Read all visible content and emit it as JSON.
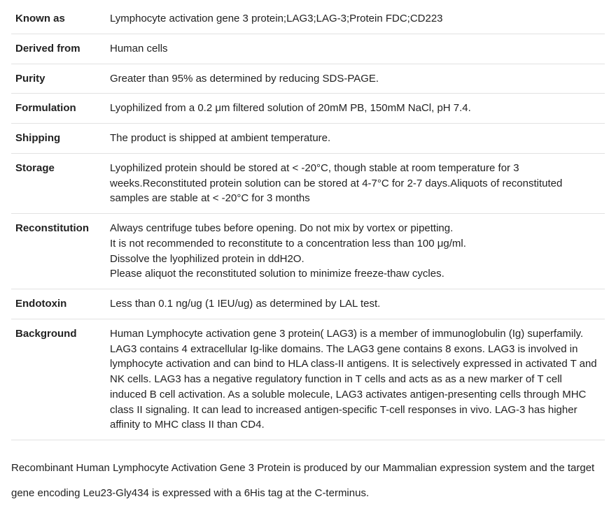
{
  "table": {
    "rows": [
      {
        "label": "Known as",
        "value": "Lymphocyte activation gene 3 protein;LAG3;LAG-3;Protein FDC;CD223"
      },
      {
        "label": "Derived from",
        "value": "Human cells"
      },
      {
        "label": "Purity",
        "value": "Greater than 95% as determined by reducing SDS-PAGE."
      },
      {
        "label": "Formulation",
        "value": "Lyophilized from a 0.2 μm filtered solution of 20mM PB, 150mM NaCl, pH 7.4."
      },
      {
        "label": "Shipping",
        "value": "The product is shipped at ambient temperature."
      },
      {
        "label": "Storage",
        "value": "Lyophilized protein should be stored at < -20°C, though stable at room temperature for 3 weeks.Reconstituted protein solution can be stored at 4-7°C for 2-7 days.Aliquots of reconstituted samples are stable at < -20°C for 3 months"
      },
      {
        "label": "Reconstitution",
        "value": "Always centrifuge tubes before opening. Do not mix by vortex or pipetting.\nIt is not recommended to reconstitute to a concentration less than 100 μg/ml.\nDissolve the lyophilized protein in ddH2O.\nPlease aliquot the reconstituted solution to minimize freeze-thaw cycles."
      },
      {
        "label": "Endotoxin",
        "value": "Less than 0.1 ng/ug (1 IEU/ug) as determined by LAL test."
      },
      {
        "label": "Background",
        "value": "Human Lymphocyte activation gene 3 protein( LAG3) is a member of immunoglobulin (Ig) superfamily. LAG3 contains 4 extracellular Ig-like domains. The LAG3 gene contains 8 exons. LAG3 is involved in lymphocyte activation and can bind to HLA class-II antigens. It is selectively expressed in activated T and NK cells. LAG3 has a negative regulatory function in T cells and acts as as a new marker of T cell induced B cell activation. As a soluble molecule, LAG3 activates antigen-presenting cells through MHC class II signaling. It can lead to increased antigen-specific T-cell responses in vivo. LAG-3 has higher affinity to MHC class II than CD4."
      }
    ]
  },
  "footnote": "Recombinant Human Lymphocyte Activation Gene 3 Protein is produced by our Mammalian expression system and the target gene encoding Leu23-Gly434 is expressed with a 6His tag at the C-terminus."
}
